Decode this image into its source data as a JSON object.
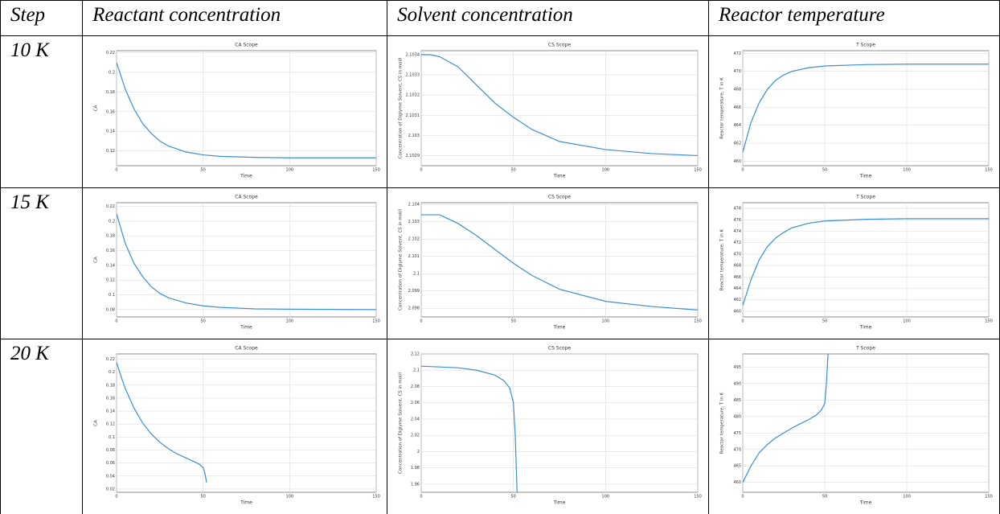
{
  "table": {
    "header": [
      "Step",
      "Reactant concentration",
      "Solvent concentration",
      "Reactor temperature"
    ],
    "rows": [
      {
        "step": "10 K",
        "charts": [
          {
            "type": "line",
            "title": "CA Scope",
            "xlabel": "Time",
            "ylabel": "CA",
            "color": "#3b8fd0",
            "grid": true,
            "xlim": [
              0,
              150
            ],
            "ylim": [
              0.105,
              0.222
            ],
            "xticks": [
              0,
              50,
              100,
              150
            ],
            "yticks": [
              0.12,
              0.14,
              0.16,
              0.18,
              0.2,
              0.22
            ],
            "x": [
              0,
              5,
              10,
              15,
              20,
              25,
              30,
              40,
              50,
              60,
              80,
              100,
              125,
              150
            ],
            "values": [
              0.21,
              0.183,
              0.163,
              0.148,
              0.138,
              0.13,
              0.125,
              0.119,
              0.116,
              0.1145,
              0.1135,
              0.113,
              0.113,
              0.113
            ]
          },
          {
            "type": "line",
            "title": "CS Scope",
            "xlabel": "Time",
            "ylabel": "Concentration of Diglyme Solvent, CS in mol/l",
            "color": "#3b8fd0",
            "grid": true,
            "xlim": [
              0,
              150
            ],
            "ylim": [
              2.10285,
              2.10342
            ],
            "xticks": [
              0,
              50,
              100,
              150
            ],
            "yticks": [
              2.1029,
              2.103,
              2.1031,
              2.1032,
              2.1033,
              2.1034
            ],
            "x": [
              0,
              5,
              10,
              20,
              30,
              40,
              50,
              60,
              75,
              100,
              125,
              150
            ],
            "values": [
              2.1034,
              2.1034,
              2.10339,
              2.10334,
              2.10325,
              2.10316,
              2.10309,
              2.10303,
              2.10297,
              2.10293,
              2.10291,
              2.1029
            ]
          },
          {
            "type": "line",
            "title": "T Scope",
            "xlabel": "Time",
            "ylabel": "Reactor temperature, T in K",
            "color": "#3b8fd0",
            "grid": true,
            "xlim": [
              0,
              150
            ],
            "ylim": [
              459.5,
              472.3
            ],
            "xticks": [
              0,
              50,
              100,
              150
            ],
            "yticks": [
              460,
              462,
              464,
              466,
              468,
              470,
              472
            ],
            "x": [
              0,
              5,
              10,
              15,
              20,
              25,
              30,
              40,
              50,
              75,
              100,
              150
            ],
            "values": [
              461,
              464.3,
              466.5,
              468,
              469,
              469.6,
              470,
              470.4,
              470.6,
              470.75,
              470.8,
              470.8
            ]
          }
        ]
      },
      {
        "step": "15 K",
        "charts": [
          {
            "type": "line",
            "title": "CA Scope",
            "xlabel": "Time",
            "ylabel": "CA",
            "color": "#3b8fd0",
            "grid": true,
            "xlim": [
              0,
              150
            ],
            "ylim": [
              0.07,
              0.225
            ],
            "xticks": [
              0,
              50,
              100,
              150
            ],
            "yticks": [
              0.08,
              0.1,
              0.12,
              0.14,
              0.16,
              0.18,
              0.2,
              0.22
            ],
            "x": [
              0,
              5,
              10,
              15,
              20,
              25,
              30,
              40,
              50,
              60,
              80,
              100,
              150
            ],
            "values": [
              0.21,
              0.17,
              0.143,
              0.125,
              0.111,
              0.102,
              0.096,
              0.089,
              0.085,
              0.083,
              0.081,
              0.0805,
              0.08
            ]
          },
          {
            "type": "line",
            "title": "CS Scope",
            "xlabel": "Time",
            "ylabel": "Concentration of Diglyme Solvent, CS in mol/l",
            "color": "#3b8fd0",
            "grid": true,
            "xlim": [
              0,
              150
            ],
            "ylim": [
              2.0975,
              2.1041
            ],
            "xticks": [
              0,
              50,
              100,
              150
            ],
            "yticks": [
              2.098,
              2.099,
              2.1,
              2.101,
              2.102,
              2.103,
              2.104
            ],
            "x": [
              0,
              10,
              20,
              30,
              40,
              50,
              60,
              75,
              100,
              125,
              150
            ],
            "values": [
              2.1034,
              2.1034,
              2.1029,
              2.1022,
              2.1014,
              2.1006,
              2.0999,
              2.0991,
              2.0984,
              2.0981,
              2.0979
            ]
          },
          {
            "type": "line",
            "title": "T Scope",
            "xlabel": "Time",
            "ylabel": "Reactor temperature, T in K",
            "color": "#3b8fd0",
            "grid": true,
            "xlim": [
              0,
              150
            ],
            "ylim": [
              459,
              479
            ],
            "xticks": [
              0,
              50,
              100,
              150
            ],
            "yticks": [
              460,
              462,
              464,
              466,
              468,
              470,
              472,
              474,
              476,
              478
            ],
            "x": [
              0,
              5,
              10,
              15,
              20,
              25,
              30,
              40,
              50,
              75,
              100,
              150
            ],
            "values": [
              461,
              465.5,
              469,
              471.3,
              472.8,
              473.8,
              474.6,
              475.4,
              475.8,
              476.1,
              476.2,
              476.2
            ]
          }
        ]
      },
      {
        "step": "20 K",
        "charts": [
          {
            "type": "line",
            "title": "CA Scope",
            "xlabel": "Time",
            "ylabel": "CA",
            "color": "#3b8fd0",
            "grid": true,
            "xlim": [
              0,
              150
            ],
            "ylim": [
              0.015,
              0.228
            ],
            "xticks": [
              0,
              50,
              100,
              150
            ],
            "yticks": [
              0.02,
              0.04,
              0.06,
              0.08,
              0.1,
              0.12,
              0.14,
              0.16,
              0.18,
              0.2,
              0.22
            ],
            "x": [
              0,
              3,
              5,
              10,
              15,
              20,
              25,
              30,
              35,
              40,
              45,
              48,
              50,
              51,
              52
            ],
            "values": [
              0.215,
              0.19,
              0.175,
              0.145,
              0.122,
              0.105,
              0.092,
              0.082,
              0.074,
              0.068,
              0.062,
              0.058,
              0.053,
              0.045,
              0.03
            ]
          },
          {
            "type": "line",
            "title": "CS Scope",
            "xlabel": "Time",
            "ylabel": "Concentration of Diglyme Solvent, CS in mol/l",
            "color": "#3b8fd0",
            "grid": true,
            "xlim": [
              0,
              150
            ],
            "ylim": [
              1.95,
              2.12
            ],
            "xticks": [
              0,
              50,
              100,
              150
            ],
            "yticks": [
              1.96,
              1.98,
              2,
              2.02,
              2.04,
              2.06,
              2.08,
              2.1,
              2.12
            ],
            "x": [
              0,
              10,
              20,
              30,
              40,
              45,
              48,
              50,
              51,
              52
            ],
            "values": [
              2.105,
              2.104,
              2.103,
              2.1,
              2.094,
              2.087,
              2.078,
              2.06,
              2.02,
              1.95
            ]
          },
          {
            "type": "line",
            "title": "T Scope",
            "xlabel": "Time",
            "ylabel": "Reactor temperature, T in K",
            "color": "#3b8fd0",
            "grid": true,
            "xlim": [
              0,
              150
            ],
            "ylim": [
              457,
              499
            ],
            "xticks": [
              0,
              50,
              100,
              150
            ],
            "yticks": [
              460,
              465,
              470,
              475,
              480,
              485,
              490,
              495
            ],
            "x": [
              0,
              3,
              5,
              10,
              15,
              20,
              25,
              30,
              35,
              40,
              45,
              48,
              50,
              51,
              52
            ],
            "values": [
              460,
              463,
              465,
              469,
              471.5,
              473.5,
              475,
              476.5,
              477.8,
              479,
              480.5,
              482,
              484,
              490,
              499
            ]
          }
        ]
      }
    ]
  }
}
